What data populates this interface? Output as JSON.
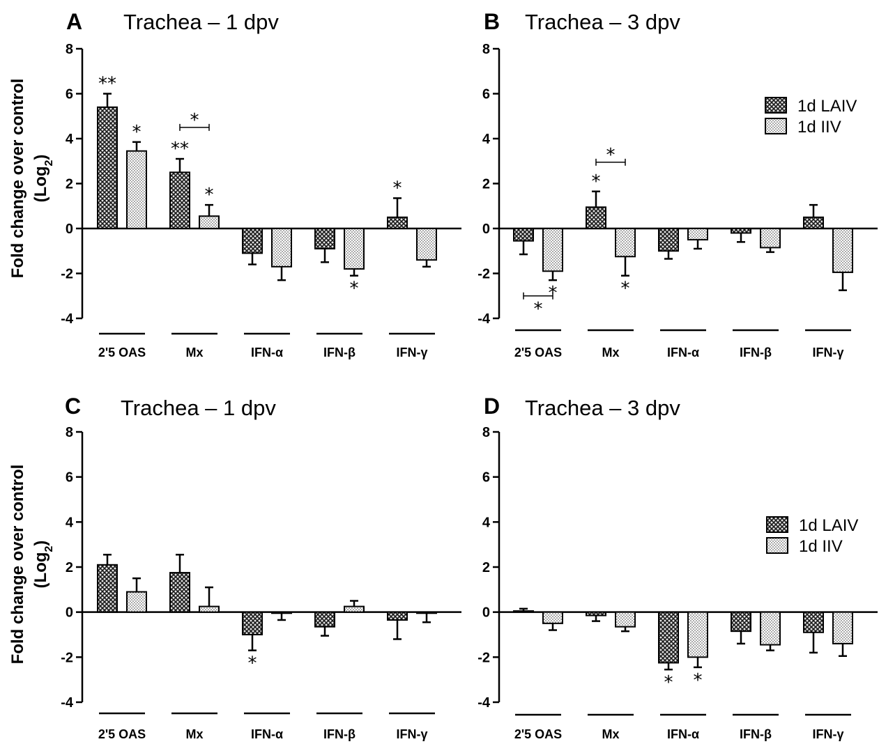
{
  "figure": {
    "ylabel_line1": "Fold change over control",
    "ylabel_line2": "(Log",
    "ylabel_sub": "2",
    "ylabel_close": ")"
  },
  "legend": {
    "series": [
      {
        "name": "1d LAIV",
        "pattern": "crosshatch"
      },
      {
        "name": "1d IIV",
        "pattern": "dots"
      }
    ]
  },
  "chart_data": [
    {
      "panel": "A",
      "type": "bar",
      "title": "Trachea – 1 dpv",
      "ylim": [
        -4,
        8
      ],
      "yticks": [
        -4,
        -2,
        0,
        2,
        4,
        6,
        8
      ],
      "categories": [
        "2'5 OAS",
        "Mx",
        "IFN-α",
        "IFN-β",
        "IFN-γ"
      ],
      "legend": false,
      "series": [
        {
          "name": "1d LAIV",
          "values": [
            5.4,
            2.5,
            -1.1,
            -0.9,
            0.5
          ],
          "errors": [
            0.6,
            0.6,
            0.5,
            0.6,
            0.85
          ],
          "stars": [
            "**",
            "**",
            "",
            "",
            "*"
          ]
        },
        {
          "name": "1d IIV",
          "values": [
            3.45,
            0.55,
            -1.7,
            -1.8,
            -1.4
          ],
          "errors": [
            0.4,
            0.5,
            0.6,
            0.3,
            0.3
          ],
          "stars": [
            "*",
            "*",
            "",
            "*",
            ""
          ]
        }
      ],
      "brackets": [
        {
          "category": 1,
          "label": "*",
          "y": 4.5
        }
      ]
    },
    {
      "panel": "B",
      "type": "bar",
      "title": "Trachea – 3 dpv",
      "ylim": [
        -4,
        8
      ],
      "yticks": [
        -4,
        -2,
        0,
        2,
        4,
        6,
        8
      ],
      "categories": [
        "2'5 OAS",
        "Mx",
        "IFN-α",
        "IFN-β",
        "IFN-γ"
      ],
      "legend": true,
      "series": [
        {
          "name": "1d LAIV",
          "values": [
            -0.55,
            0.95,
            -1.0,
            -0.2,
            0.5
          ],
          "errors": [
            0.6,
            0.7,
            0.35,
            0.4,
            0.55
          ],
          "stars": [
            "",
            "*",
            "",
            "",
            ""
          ]
        },
        {
          "name": "1d IIV",
          "values": [
            -1.9,
            -1.25,
            -0.5,
            -0.85,
            -1.95
          ],
          "errors": [
            0.4,
            0.85,
            0.4,
            0.2,
            0.8
          ],
          "stars": [
            "*",
            "*",
            "",
            "",
            ""
          ]
        }
      ],
      "brackets": [
        {
          "category": 1,
          "label": "*",
          "y": 2.95
        },
        {
          "category": 0,
          "label": "*",
          "y": -3.0
        }
      ]
    },
    {
      "panel": "C",
      "type": "bar",
      "title": "Trachea – 1 dpv",
      "ylim": [
        -4,
        8
      ],
      "yticks": [
        -4,
        -2,
        0,
        2,
        4,
        6,
        8
      ],
      "categories": [
        "2'5 OAS",
        "Mx",
        "IFN-α",
        "IFN-β",
        "IFN-γ"
      ],
      "legend": false,
      "series": [
        {
          "name": "1d LAIV",
          "values": [
            2.1,
            1.75,
            -1.0,
            -0.65,
            -0.35
          ],
          "errors": [
            0.45,
            0.8,
            0.7,
            0.4,
            0.85
          ],
          "stars": [
            "",
            "",
            "*",
            "",
            ""
          ]
        },
        {
          "name": "1d IIV",
          "values": [
            0.9,
            0.25,
            -0.05,
            0.25,
            -0.05
          ],
          "errors": [
            0.6,
            0.85,
            0.3,
            0.25,
            0.4
          ],
          "stars": [
            "",
            "",
            "",
            "",
            ""
          ]
        }
      ],
      "brackets": []
    },
    {
      "panel": "D",
      "type": "bar",
      "title": "Trachea – 3 dpv",
      "ylim": [
        -4,
        8
      ],
      "yticks": [
        -4,
        -2,
        0,
        2,
        4,
        6,
        8
      ],
      "categories": [
        "2'5 OAS",
        "Mx",
        "IFN-α",
        "IFN-β",
        "IFN-γ"
      ],
      "legend": true,
      "series": [
        {
          "name": "1d LAIV",
          "values": [
            0.05,
            -0.15,
            -2.25,
            -0.85,
            -0.9
          ],
          "errors": [
            0.1,
            0.25,
            0.3,
            0.55,
            0.9
          ],
          "stars": [
            "",
            "",
            "*",
            "",
            ""
          ]
        },
        {
          "name": "1d IIV",
          "values": [
            -0.5,
            -0.65,
            -2.0,
            -1.45,
            -1.4
          ],
          "errors": [
            0.3,
            0.2,
            0.45,
            0.25,
            0.55
          ],
          "stars": [
            "",
            "",
            "*",
            "",
            ""
          ]
        }
      ],
      "brackets": []
    }
  ]
}
